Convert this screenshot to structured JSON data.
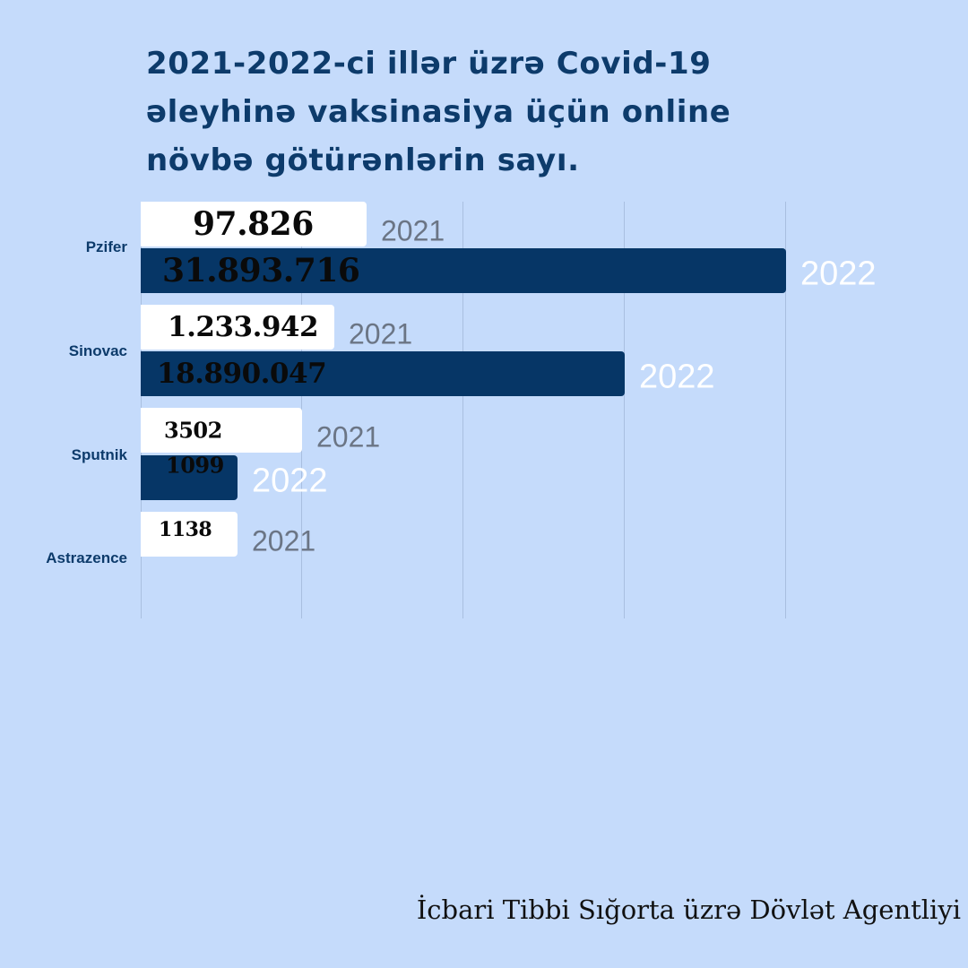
{
  "title": "2021-2022-ci illər üzrə Covid-19\nəleyhinə vaksinasiya  üçün online\nnövbə götürənlərin sayı.",
  "footer": "İcbari Tibbi Sığorta  üzrə Dövlət Agentliyi",
  "colors": {
    "background": "#c5dbfb",
    "bar_2021": "#ffffff",
    "bar_2022": "#063666",
    "title": "#0d3b6b"
  },
  "chart_data": {
    "type": "bar",
    "orientation": "horizontal",
    "categories": [
      "Pzifer",
      "Sinovac",
      "Sputnik",
      "Astrazence"
    ],
    "series": [
      {
        "name": "2021",
        "values": [
          97826,
          1233942,
          3502,
          1138
        ],
        "labels": [
          "97.826",
          "1.233.942",
          "3502",
          "1138"
        ]
      },
      {
        "name": "2022",
        "values": [
          31893716,
          18890047,
          1099,
          null
        ],
        "labels": [
          "31.893.716",
          "18.890.047",
          "1099",
          ""
        ]
      }
    ],
    "grid": true
  }
}
